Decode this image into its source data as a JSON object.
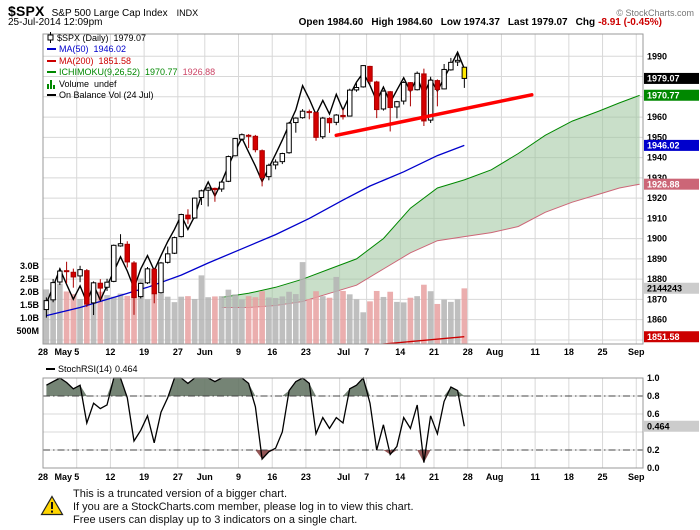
{
  "header": {
    "symbol": "$SPX",
    "index_name": "S&P 500 Large Cap Index",
    "exchange": "INDX",
    "copyright": "© StockCharts.com",
    "datetime": "25-Jul-2014 12:09pm",
    "quote": {
      "open_label": "Open",
      "open": "1984.60",
      "high_label": "High",
      "high": "1984.60",
      "low_label": "Low",
      "low": "1974.37",
      "last_label": "Last",
      "last": "1979.07",
      "chg_label": "Chg",
      "chg": "-8.91 (-0.45%)"
    }
  },
  "legend": {
    "main": [
      {
        "label": "$SPX (Daily)",
        "value": "1979.07",
        "color": "#000000"
      },
      {
        "label": "MA(50)",
        "value": "1946.02",
        "color": "#0000cc"
      },
      {
        "label": "MA(200)",
        "value": "1851.58",
        "color": "#cc0000"
      },
      {
        "label": "ICHIMOKU(9,26,52)",
        "value": "1970.77",
        "value2": "1926.88",
        "color": "#008800",
        "value2_color": "#cc4466"
      },
      {
        "label": "Volume",
        "value": "undef",
        "color": "#000000"
      },
      {
        "label": "On Balance Vol (24 Jul)",
        "value": "",
        "color": "#000000"
      }
    ],
    "rsi": {
      "label": "StochRSI(14)",
      "value": "0.464",
      "color": "#000000"
    }
  },
  "footer": {
    "lines": [
      "This is a truncated version of a bigger chart.",
      "If you are a StockCharts.com member, please log in to view this chart.",
      "Free users can display up to 3 indicators on a single chart."
    ]
  },
  "chart_data": {
    "type": "candlestick",
    "title": "$SPX Daily with MA(50), MA(200), Ichimoku Cloud, Volume and On Balance Volume, plus StochRSI(14) panel",
    "price_axis": {
      "min": 1848,
      "max": 2001,
      "step": 10,
      "label_min": 1860,
      "label_max": 1990
    },
    "volume_axis": {
      "ticks": [
        {
          "v": 3.0,
          "text": "3.0B"
        },
        {
          "v": 2.5,
          "text": "2.5B"
        },
        {
          "v": 2.0,
          "text": "2.0B"
        },
        {
          "v": 1.5,
          "text": "1.5B"
        },
        {
          "v": 1.0,
          "text": "1.0B"
        },
        {
          "v": 0.5,
          "text": "500M"
        }
      ]
    },
    "x_axis": {
      "total_slots": 89,
      "gridline_slots": [
        5,
        10,
        15,
        20,
        24,
        29,
        34,
        39,
        44,
        48,
        53,
        58,
        63,
        68,
        73,
        78,
        83,
        88
      ],
      "labels": [
        {
          "slot": 0,
          "text": "28"
        },
        {
          "slot": 3,
          "text": "May"
        },
        {
          "slot": 5,
          "text": "5"
        },
        {
          "slot": 10,
          "text": "12"
        },
        {
          "slot": 15,
          "text": "19"
        },
        {
          "slot": 20,
          "text": "27"
        },
        {
          "slot": 24,
          "text": "Jun"
        },
        {
          "slot": 29,
          "text": "9"
        },
        {
          "slot": 34,
          "text": "16"
        },
        {
          "slot": 39,
          "text": "23"
        },
        {
          "slot": 44.6,
          "text": "Jul"
        },
        {
          "slot": 48,
          "text": "7"
        },
        {
          "slot": 53,
          "text": "14"
        },
        {
          "slot": 58,
          "text": "21"
        },
        {
          "slot": 63,
          "text": "28"
        },
        {
          "slot": 67,
          "text": "Aug"
        },
        {
          "slot": 73,
          "text": "11"
        },
        {
          "slot": 78,
          "text": "18"
        },
        {
          "slot": 83,
          "text": "25"
        },
        {
          "slot": 88,
          "text": "Sep"
        }
      ]
    },
    "candles": {
      "dates": [
        "28 Apr",
        "29 Apr",
        "30 Apr",
        "1 May",
        "2 May",
        "5 May",
        "6 May",
        "7 May",
        "8 May",
        "9 May",
        "12 May",
        "13 May",
        "14 May",
        "15 May",
        "16 May",
        "19 May",
        "20 May",
        "21 May",
        "22 May",
        "23 May",
        "27 May",
        "28 May",
        "29 May",
        "30 May",
        "2 Jun",
        "3 Jun",
        "4 Jun",
        "5 Jun",
        "6 Jun",
        "9 Jun",
        "10 Jun",
        "11 Jun",
        "12 Jun",
        "13 Jun",
        "16 Jun",
        "17 Jun",
        "18 Jun",
        "19 Jun",
        "20 Jun",
        "23 Jun",
        "24 Jun",
        "25 Jun",
        "26 Jun",
        "27 Jun",
        "30 Jun",
        "1 Jul",
        "2 Jul",
        "3 Jul",
        "7 Jul",
        "8 Jul",
        "9 Jul",
        "10 Jul",
        "11 Jul",
        "14 Jul",
        "15 Jul",
        "16 Jul",
        "17 Jul",
        "18 Jul",
        "21 Jul",
        "22 Jul",
        "23 Jul",
        "24 Jul",
        "25 Jul"
      ],
      "open": [
        1865.0,
        1869.8,
        1878.6,
        1884.2,
        1883.4,
        1881.6,
        1884.2,
        1868.3,
        1878.0,
        1876.0,
        1878.9,
        1896.4,
        1897.2,
        1888.0,
        1871.4,
        1878.2,
        1884.9,
        1873.3,
        1888.3,
        1892.8,
        1901.0,
        1911.6,
        1910.2,
        1920.3,
        1923.9,
        1924.8,
        1924.5,
        1928.3,
        1940.9,
        1949.1,
        1951.0,
        1950.5,
        1943.4,
        1930.6,
        1936.4,
        1938.0,
        1942.4,
        1957.3,
        1959.7,
        1962.7,
        1962.2,
        1950.3,
        1959.3,
        1957.4,
        1960.8,
        1960.5,
        1973.4,
        1974.9,
        1985.0,
        1977.3,
        1964.0,
        1972.5,
        1965.0,
        1967.9,
        1977.0,
        1973.5,
        1981.3,
        1958.5,
        1978.0,
        1973.9,
        1983.3,
        1987.2,
        1984.6
      ],
      "high": [
        1871.0,
        1880.1,
        1885.5,
        1888.6,
        1885.2,
        1886.6,
        1885.0,
        1878.9,
        1880.0,
        1880.2,
        1897.1,
        1902.2,
        1898.7,
        1888.9,
        1878.3,
        1886.0,
        1885.5,
        1888.5,
        1896.1,
        1901.0,
        1912.3,
        1914.5,
        1920.3,
        1924.2,
        1925.6,
        1925.2,
        1928.6,
        1941.0,
        1949.7,
        1951.9,
        1951.6,
        1951.2,
        1944.0,
        1937.0,
        1939.1,
        1942.4,
        1957.6,
        1959.9,
        1963.9,
        1963.7,
        1962.7,
        1960.1,
        1959.9,
        1961.5,
        1964.0,
        1974.0,
        1976.7,
        1985.6,
        1985.3,
        1977.9,
        1973.2,
        1972.9,
        1968.0,
        1977.7,
        1977.3,
        1982.5,
        1983.9,
        1979.9,
        1978.6,
        1986.2,
        1989.2,
        1991.4,
        1984.6
      ],
      "low": [
        1861.0,
        1868.6,
        1877.1,
        1878.0,
        1875.8,
        1878.5,
        1866.3,
        1862.3,
        1870.1,
        1874.2,
        1878.5,
        1896.0,
        1885.8,
        1862.4,
        1870.5,
        1877.6,
        1868.1,
        1872.9,
        1887.7,
        1892.4,
        1900.6,
        1907.3,
        1909.8,
        1916.6,
        1915.9,
        1918.2,
        1923.1,
        1927.9,
        1940.6,
        1948.4,
        1944.7,
        1942.6,
        1925.8,
        1928.8,
        1934.2,
        1936.8,
        1941.9,
        1952.3,
        1959.2,
        1958.9,
        1948.3,
        1949.2,
        1952.2,
        1956.0,
        1958.8,
        1960.3,
        1972.5,
        1974.5,
        1976.3,
        1959.5,
        1963.2,
        1952.9,
        1959.4,
        1966.2,
        1965.3,
        1973.1,
        1955.6,
        1957.1,
        1965.3,
        1973.7,
        1982.9,
        1985.2,
        1974.4
      ],
      "close": [
        1869.4,
        1878.3,
        1884.0,
        1883.7,
        1881.1,
        1884.7,
        1867.7,
        1878.2,
        1875.6,
        1878.5,
        1896.7,
        1897.5,
        1888.5,
        1870.9,
        1877.9,
        1885.1,
        1872.8,
        1888.0,
        1892.5,
        1900.5,
        1911.9,
        1909.8,
        1920.0,
        1923.6,
        1925.0,
        1924.2,
        1927.9,
        1940.5,
        1949.4,
        1951.3,
        1950.8,
        1943.9,
        1930.1,
        1936.2,
        1937.8,
        1942.0,
        1957.0,
        1959.5,
        1962.9,
        1962.6,
        1950.0,
        1959.5,
        1957.2,
        1961.0,
        1960.2,
        1973.3,
        1974.6,
        1985.4,
        1977.7,
        1963.7,
        1972.8,
        1964.7,
        1967.6,
        1977.1,
        1973.3,
        1981.6,
        1958.1,
        1978.2,
        1973.6,
        1983.5,
        1987.0,
        1988.0,
        1979.07
      ],
      "volume_billions": [
        2.1,
        2.18,
        2.32,
        2.02,
        1.92,
        1.73,
        2.14,
        2.29,
        2.01,
        1.88,
        1.82,
        1.94,
        1.85,
        2.23,
        2.52,
        1.72,
        1.94,
        1.93,
        1.82,
        1.61,
        1.82,
        1.84,
        1.73,
        2.64,
        1.8,
        1.83,
        1.84,
        2.09,
        1.91,
        1.71,
        1.84,
        1.8,
        2.03,
        1.79,
        1.77,
        1.83,
        2.01,
        1.92,
        3.15,
        1.73,
        2.03,
        1.84,
        1.78,
        2.58,
        2.04,
        1.91,
        1.72,
        1.22,
        1.64,
        2.04,
        1.81,
        2.01,
        1.62,
        1.6,
        1.78,
        1.84,
        2.28,
        2.03,
        1.54,
        1.71,
        1.62,
        1.72,
        2.14
      ]
    },
    "ma50": {
      "color": "#0000cc",
      "points": [
        [
          0,
          1862
        ],
        [
          5,
          1866
        ],
        [
          10,
          1871
        ],
        [
          15,
          1876
        ],
        [
          20,
          1882
        ],
        [
          24,
          1888
        ],
        [
          29,
          1895
        ],
        [
          34,
          1902
        ],
        [
          39,
          1910
        ],
        [
          44,
          1919
        ],
        [
          48,
          1926
        ],
        [
          53,
          1933
        ],
        [
          58,
          1941
        ],
        [
          62,
          1946.02
        ]
      ]
    },
    "ma200": {
      "color": "#cc0000",
      "points": [
        [
          0,
          1826
        ],
        [
          10,
          1831
        ],
        [
          20,
          1836
        ],
        [
          30,
          1840
        ],
        [
          40,
          1844
        ],
        [
          50,
          1848
        ],
        [
          62,
          1851.58
        ]
      ]
    },
    "ichimoku_cloud": {
      "fill": "#9dc49d",
      "fill_opacity": 0.55,
      "a_color": "#008800",
      "b_color": "#cc6677",
      "senkou_a": [
        [
          26,
          1871
        ],
        [
          30,
          1873
        ],
        [
          34,
          1876
        ],
        [
          38,
          1880
        ],
        [
          42,
          1885
        ],
        [
          46,
          1890
        ],
        [
          50,
          1900
        ],
        [
          54,
          1915
        ],
        [
          58,
          1925
        ],
        [
          62,
          1929
        ],
        [
          66,
          1934
        ],
        [
          70,
          1942
        ],
        [
          74,
          1951
        ],
        [
          78,
          1958
        ],
        [
          82,
          1963
        ],
        [
          85,
          1967
        ],
        [
          88,
          1970.77
        ]
      ],
      "senkou_b": [
        [
          26,
          1866
        ],
        [
          30,
          1866
        ],
        [
          34,
          1867
        ],
        [
          38,
          1869
        ],
        [
          42,
          1873
        ],
        [
          46,
          1877
        ],
        [
          50,
          1885
        ],
        [
          54,
          1893
        ],
        [
          58,
          1899
        ],
        [
          62,
          1901
        ],
        [
          66,
          1903
        ],
        [
          70,
          1906
        ],
        [
          74,
          1913
        ],
        [
          78,
          1918
        ],
        [
          82,
          1922
        ],
        [
          85,
          1925
        ],
        [
          88,
          1926.88
        ]
      ]
    },
    "obv": {
      "color": "#000000",
      "display_range": [
        1868,
        1992
      ],
      "last_label": "2144243"
    },
    "trendline": {
      "color": "#ff0000",
      "width": 3.5,
      "from": [
        43,
        1951
      ],
      "to": [
        72,
        1971
      ]
    },
    "value_flags": [
      {
        "value": 1979.07,
        "text": "1979.07",
        "bg": "#000000",
        "fg": "#ffffff",
        "scale": "price"
      },
      {
        "value": 1970.77,
        "text": "1970.77",
        "bg": "#008800",
        "fg": "#ffffff",
        "scale": "price"
      },
      {
        "value": 1946.02,
        "text": "1946.02",
        "bg": "#0000cc",
        "fg": "#ffffff",
        "scale": "price"
      },
      {
        "value": 1926.88,
        "text": "1926.88",
        "bg": "#cc6677",
        "fg": "#ffffff",
        "scale": "price"
      },
      {
        "value": 2.144,
        "text": "2144243",
        "bg": "#cccccc",
        "fg": "#000000",
        "scale": "volume"
      },
      {
        "value": 1851.58,
        "text": "1851.58",
        "bg": "#cc0000",
        "fg": "#ffffff",
        "scale": "price"
      }
    ],
    "style": {
      "grid": "#d8d8d8",
      "border": "#999999",
      "up_fill": "#ffffff",
      "up_stroke": "#000000",
      "down_fill": "#d40000",
      "down_stroke": "#aa0000",
      "last_fill": "#ffe800",
      "last_stroke": "#000000",
      "vol_up": "#b4b4b4",
      "vol_down": "#e8a0a0"
    },
    "stochrsi": {
      "name": "StochRSI(14)",
      "current": 0.464,
      "overbought": 0.8,
      "oversold": 0.2,
      "fill_above": "#667766",
      "fill_below": "#884444",
      "ticks": [
        {
          "v": 1.0,
          "text": "1.0"
        },
        {
          "v": 0.8,
          "text": "0.8"
        },
        {
          "v": 0.6,
          "text": "0.6"
        },
        {
          "v": 0.2,
          "text": "0.2"
        },
        {
          "v": 0.0,
          "text": "0.0"
        }
      ],
      "flag": {
        "value": 0.464,
        "text": "0.464",
        "bg": "#cccccc",
        "fg": "#000000"
      },
      "values": [
        0.92,
        0.96,
        1.0,
        0.95,
        0.88,
        0.92,
        0.5,
        0.72,
        0.66,
        0.7,
        1.0,
        1.0,
        0.78,
        0.3,
        0.42,
        0.58,
        0.28,
        0.62,
        0.78,
        1.0,
        1.0,
        0.94,
        1.0,
        1.0,
        1.0,
        0.96,
        1.0,
        1.0,
        1.0,
        1.0,
        0.94,
        0.68,
        0.1,
        0.18,
        0.22,
        0.4,
        0.86,
        0.96,
        1.0,
        0.94,
        0.38,
        0.56,
        0.44,
        0.56,
        0.5,
        0.88,
        0.92,
        1.0,
        0.72,
        0.2,
        0.48,
        0.15,
        0.24,
        0.56,
        0.44,
        0.7,
        0.06,
        0.58,
        0.38,
        0.74,
        0.9,
        0.86,
        0.464
      ]
    }
  }
}
